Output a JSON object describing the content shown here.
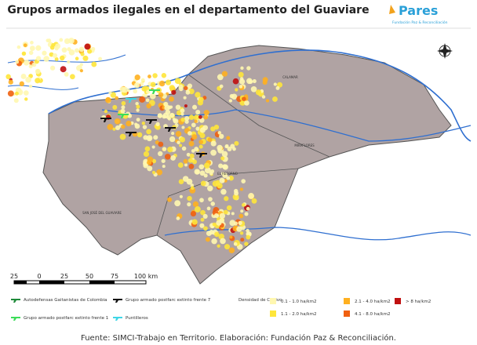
{
  "header": {
    "title": "Grupos armados ilegales en el departamento del Guaviare",
    "logo": "Pares",
    "logo_subtitle": "Fundación Paz & Reconciliación"
  },
  "map": {
    "labels": [
      "CALAMAR",
      "MIRAFLORES",
      "EL RETORNO",
      "SAN JOSÉ DEL GUAVIARE"
    ]
  },
  "scale": {
    "labels": [
      "25",
      "0",
      "25",
      "50",
      "75",
      "100 km"
    ]
  },
  "legend": {
    "groups": [
      {
        "label": "Autodefensas Gaitanistas de Colombia",
        "color": "#1f8a3a"
      },
      {
        "label": "Grupo armado postfarc extinto frente 7",
        "color": "#111111"
      },
      {
        "label": "Grupo armado postfarc extinto frente 1",
        "color": "#3ddc5a"
      },
      {
        "label": "Puntilleros",
        "color": "#3fd6e6"
      }
    ],
    "density_title": "Densidad de Cultivo",
    "density": [
      {
        "label": "0.1 - 1.0 ha/km2",
        "color": "#fff7b0"
      },
      {
        "label": "1.1 - 2.0 ha/km2",
        "color": "#ffe63a"
      },
      {
        "label": "2.1 - 4.0 ha/km2",
        "color": "#ffb020"
      },
      {
        "label": "4.1 - 8.0 ha/km2",
        "color": "#f06010"
      },
      {
        "label": "> 8 ha/km2",
        "color": "#c01010"
      }
    ]
  },
  "footer": {
    "source": "Fuente: SIMCI-Trabajo en Territorio. Elaboración: Fundación Paz & Reconciliación."
  }
}
